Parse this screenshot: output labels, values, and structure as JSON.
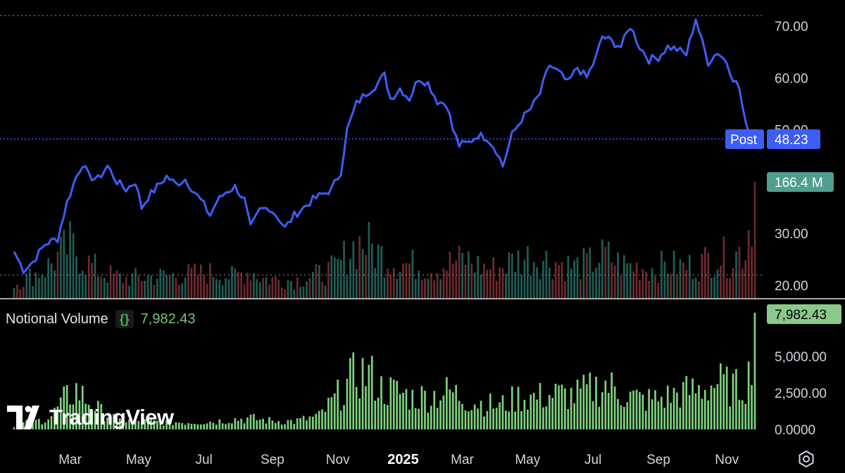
{
  "chart_data": {
    "type": "line",
    "price_axis": {
      "ticks": [
        "70.00",
        "60.00",
        "50.00",
        "30.00",
        "20.00"
      ],
      "ylim": [
        18,
        74
      ]
    },
    "volume_axis": {
      "ticks": [
        "5,000.00",
        "2,500.00",
        "0.0000"
      ],
      "ylim": [
        0,
        8000
      ]
    },
    "x_labels": [
      {
        "label": "Mar",
        "idx": 18,
        "bold": false
      },
      {
        "label": "May",
        "idx": 40,
        "bold": false
      },
      {
        "label": "Jul",
        "idx": 61,
        "bold": false
      },
      {
        "label": "Sep",
        "idx": 83,
        "bold": false
      },
      {
        "label": "Nov",
        "idx": 104,
        "bold": false
      },
      {
        "label": "2025",
        "idx": 125,
        "bold": true
      },
      {
        "label": "Mar",
        "idx": 144,
        "bold": false
      },
      {
        "label": "May",
        "idx": 165,
        "bold": false
      },
      {
        "label": "Jul",
        "idx": 186,
        "bold": false
      },
      {
        "label": "Sep",
        "idx": 207,
        "bold": false
      },
      {
        "label": "Nov",
        "idx": 229,
        "bold": false
      }
    ],
    "price_series_name": "Post",
    "price_last": "48.23",
    "price_high_dotted": 72.0,
    "price_low_dotted": 22.0,
    "volume_last": "166.4 M",
    "notional_volume_name": "Notional Volume",
    "notional_volume_last": "7,982.43",
    "price_keypoints": [
      [
        0,
        26.5
      ],
      [
        3,
        23.0
      ],
      [
        6,
        24.5
      ],
      [
        10,
        28.0
      ],
      [
        14,
        29.0
      ],
      [
        17,
        36.0
      ],
      [
        20,
        41.0
      ],
      [
        22,
        43.5
      ],
      [
        24,
        41.0
      ],
      [
        27,
        40.5
      ],
      [
        30,
        43.0
      ],
      [
        33,
        40.0
      ],
      [
        36,
        38.5
      ],
      [
        39,
        40.0
      ],
      [
        41,
        35.0
      ],
      [
        43,
        37.0
      ],
      [
        46,
        39.0
      ],
      [
        49,
        41.0
      ],
      [
        52,
        39.5
      ],
      [
        55,
        40.5
      ],
      [
        58,
        38.0
      ],
      [
        61,
        35.5
      ],
      [
        63,
        33.5
      ],
      [
        65,
        36.0
      ],
      [
        68,
        38.0
      ],
      [
        71,
        39.0
      ],
      [
        74,
        36.5
      ],
      [
        76,
        31.0
      ],
      [
        79,
        34.5
      ],
      [
        82,
        35.0
      ],
      [
        85,
        33.0
      ],
      [
        87,
        31.0
      ],
      [
        90,
        33.5
      ],
      [
        93,
        35.0
      ],
      [
        96,
        36.5
      ],
      [
        99,
        37.5
      ],
      [
        102,
        38.5
      ],
      [
        105,
        42.0
      ],
      [
        107,
        50.0
      ],
      [
        110,
        55.0
      ],
      [
        113,
        57.0
      ],
      [
        116,
        58.5
      ],
      [
        119,
        60.5
      ],
      [
        121,
        56.0
      ],
      [
        124,
        58.0
      ],
      [
        127,
        56.0
      ],
      [
        130,
        60.0
      ],
      [
        133,
        59.0
      ],
      [
        136,
        55.5
      ],
      [
        139,
        55.0
      ],
      [
        141,
        50.0
      ],
      [
        143,
        47.0
      ],
      [
        146,
        47.5
      ],
      [
        149,
        49.0
      ],
      [
        152,
        48.5
      ],
      [
        155,
        46.0
      ],
      [
        157,
        43.0
      ],
      [
        160,
        49.0
      ],
      [
        163,
        52.0
      ],
      [
        166,
        54.0
      ],
      [
        169,
        57.0
      ],
      [
        172,
        62.5
      ],
      [
        175,
        61.0
      ],
      [
        178,
        59.0
      ],
      [
        181,
        62.0
      ],
      [
        184,
        60.0
      ],
      [
        187,
        64.0
      ],
      [
        189,
        68.0
      ],
      [
        192,
        67.0
      ],
      [
        195,
        66.0
      ],
      [
        198,
        70.0
      ],
      [
        201,
        66.0
      ],
      [
        204,
        63.5
      ],
      [
        207,
        64.0
      ],
      [
        210,
        66.0
      ],
      [
        213,
        65.5
      ],
      [
        216,
        64.5
      ],
      [
        219,
        71.5
      ],
      [
        221,
        67.0
      ],
      [
        223,
        63.0
      ],
      [
        226,
        65.0
      ],
      [
        229,
        63.0
      ],
      [
        231,
        60.0
      ],
      [
        233,
        58.0
      ],
      [
        235,
        51.0
      ],
      [
        237,
        49.0
      ],
      [
        238,
        48.23
      ]
    ],
    "volume_keypoints": [
      [
        0,
        0.7
      ],
      [
        10,
        1.5
      ],
      [
        18,
        2.7
      ],
      [
        22,
        2.0
      ],
      [
        28,
        1.3
      ],
      [
        35,
        1.0
      ],
      [
        45,
        1.1
      ],
      [
        55,
        1.2
      ],
      [
        65,
        1.3
      ],
      [
        70,
        1.1
      ],
      [
        76,
        1.4
      ],
      [
        80,
        1.0
      ],
      [
        90,
        0.9
      ],
      [
        100,
        1.3
      ],
      [
        104,
        1.6
      ],
      [
        108,
        2.5
      ],
      [
        112,
        2.9
      ],
      [
        118,
        2.2
      ],
      [
        123,
        1.8
      ],
      [
        128,
        1.7
      ],
      [
        135,
        1.5
      ],
      [
        140,
        1.8
      ],
      [
        145,
        2.0
      ],
      [
        150,
        1.6
      ],
      [
        155,
        1.5
      ],
      [
        160,
        1.9
      ],
      [
        165,
        2.1
      ],
      [
        170,
        2.0
      ],
      [
        175,
        1.8
      ],
      [
        180,
        1.6
      ],
      [
        185,
        1.8
      ],
      [
        190,
        2.2
      ],
      [
        195,
        1.7
      ],
      [
        200,
        1.6
      ],
      [
        205,
        1.5
      ],
      [
        210,
        1.7
      ],
      [
        215,
        1.6
      ],
      [
        220,
        1.7
      ],
      [
        225,
        2.2
      ],
      [
        230,
        2.0
      ],
      [
        235,
        2.6
      ],
      [
        238,
        5.5
      ]
    ],
    "notional_keypoints": [
      [
        0,
        300
      ],
      [
        8,
        600
      ],
      [
        12,
        900
      ],
      [
        16,
        2000
      ],
      [
        20,
        2700
      ],
      [
        24,
        1900
      ],
      [
        28,
        1200
      ],
      [
        34,
        600
      ],
      [
        45,
        500
      ],
      [
        55,
        500
      ],
      [
        65,
        550
      ],
      [
        70,
        700
      ],
      [
        76,
        750
      ],
      [
        82,
        600
      ],
      [
        90,
        550
      ],
      [
        98,
        900
      ],
      [
        102,
        1800
      ],
      [
        106,
        2800
      ],
      [
        110,
        3800
      ],
      [
        114,
        3800
      ],
      [
        118,
        2800
      ],
      [
        124,
        2500
      ],
      [
        128,
        2200
      ],
      [
        134,
        2300
      ],
      [
        140,
        2600
      ],
      [
        146,
        2000
      ],
      [
        150,
        1800
      ],
      [
        156,
        1600
      ],
      [
        162,
        2200
      ],
      [
        168,
        2200
      ],
      [
        174,
        2400
      ],
      [
        180,
        2300
      ],
      [
        186,
        2800
      ],
      [
        190,
        3100
      ],
      [
        196,
        2400
      ],
      [
        202,
        2000
      ],
      [
        208,
        2100
      ],
      [
        214,
        2500
      ],
      [
        220,
        2700
      ],
      [
        226,
        3200
      ],
      [
        232,
        2800
      ],
      [
        236,
        3600
      ],
      [
        238,
        7982
      ]
    ]
  }
}
